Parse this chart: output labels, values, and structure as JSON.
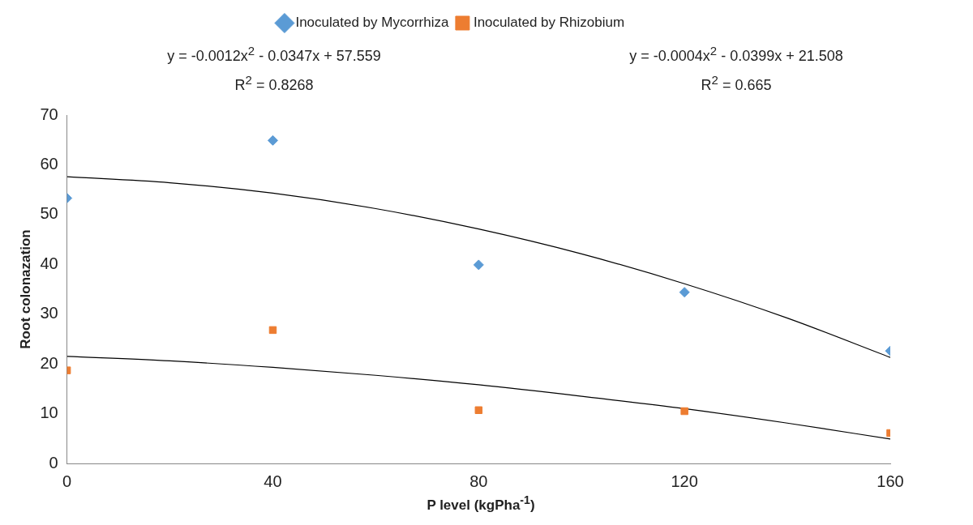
{
  "chart_data": {
    "type": "scatter",
    "xlabel": "P level (kgPha$^{-1}$)",
    "ylabel": "Root colonazation",
    "x": [
      0,
      40,
      80,
      120,
      160
    ],
    "series": [
      {
        "name": "Inoculated by Mycorrhiza",
        "color": "#5b9bd5",
        "marker": "diamond",
        "values": [
          53.3,
          64.9,
          39.9,
          34.4,
          22.6
        ]
      },
      {
        "name": "Inoculated by Rhizobium",
        "color": "#ed7d31",
        "marker": "square",
        "values": [
          18.7,
          26.8,
          10.7,
          10.5,
          6.1
        ]
      },
      {
        "type": "line",
        "color": "#000000",
        "marker": "none",
        "x": [
          0,
          20,
          40,
          60,
          80,
          100,
          120,
          140,
          160
        ],
        "values": [
          57.6,
          56.4,
          54.3,
          51.2,
          47.1,
          42.1,
          36.1,
          29.2,
          21.3
        ]
      },
      {
        "type": "line",
        "color": "#000000",
        "marker": "none",
        "x": [
          0,
          20,
          40,
          60,
          80,
          100,
          120,
          140,
          160
        ],
        "values": [
          21.5,
          20.6,
          19.3,
          17.7,
          15.8,
          13.5,
          11.0,
          8.1,
          4.9
        ]
      }
    ],
    "annotations": [
      "y = -0.0012x$^{2}$ - 0.0347x + 57.559",
      "R$^{2}$ =  0.8268",
      "y = -0.0004x$^{2}$ - 0.0399x + 21.508",
      "R$^{2}$ =  0.665"
    ],
    "xlim": [
      0,
      160
    ],
    "xticks": [
      0,
      40,
      80,
      120,
      160
    ],
    "ylim": [
      0,
      70
    ],
    "yticks": [
      0,
      10,
      20,
      30,
      40,
      50,
      60,
      70
    ],
    "grid": false,
    "legend": "top"
  }
}
